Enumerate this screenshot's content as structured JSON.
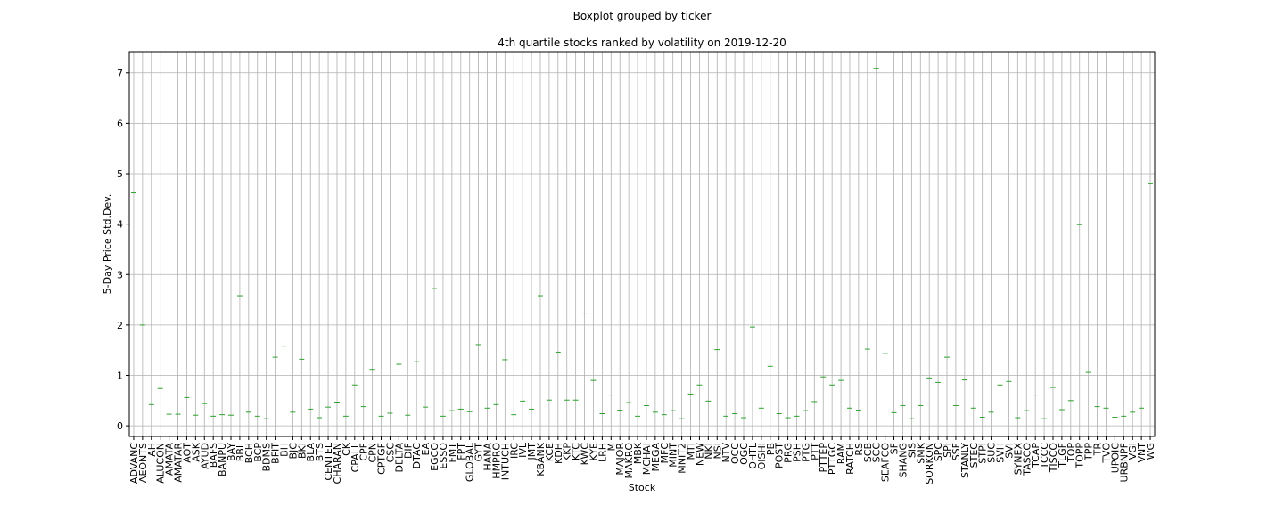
{
  "chart_data": {
    "type": "box",
    "title": "Boxplot grouped by ticker",
    "subtitle": "4th quartile stocks ranked by volatility on 2019-12-20",
    "x_label": "Stock",
    "y_label": "5-Day Price Std.Dev.",
    "color": "#2ca02c",
    "grid": true,
    "ylim": [
      -0.21,
      7.42
    ],
    "yticks": [
      0,
      1,
      2,
      3,
      4,
      5,
      6,
      7
    ],
    "categories": [
      "ADVANC",
      "AEONTS",
      "AH",
      "ALUCON",
      "AMATA",
      "AMATAR",
      "AOT",
      "ASK",
      "AYUD",
      "BAFS",
      "BANPU",
      "BAY",
      "BBL",
      "BCH",
      "BCP",
      "BDMS",
      "BFIT",
      "BH",
      "BJC",
      "BKI",
      "BLA",
      "BTS",
      "CENTEL",
      "CHARAN",
      "CK",
      "CPALL",
      "CPF",
      "CPN",
      "CPTGF",
      "CSC",
      "DELTA",
      "DIF",
      "DTAC",
      "EA",
      "EGCO",
      "ESSO",
      "FMT",
      "FPT",
      "GLOBAL",
      "GYT",
      "HANA",
      "HMPRO",
      "INTUCH",
      "IRC",
      "IVL",
      "JMT",
      "KBANK",
      "KCE",
      "KDH",
      "KKP",
      "KTC",
      "KWC",
      "KYE",
      "LRH",
      "M",
      "MAJOR",
      "MAKRO",
      "MBK",
      "MCHAI",
      "MEGA",
      "MFC",
      "MINT",
      "MNIT2",
      "MTI",
      "NEW",
      "NKI",
      "NSI",
      "NTV",
      "OCC",
      "OGC",
      "OHTL",
      "OISHI",
      "PB",
      "POST",
      "PRG",
      "PSH",
      "PTG",
      "PTT",
      "PTTEP",
      "PTTGC",
      "RAM",
      "RATCH",
      "RS",
      "SCB",
      "SCC",
      "SEAFCO",
      "SF",
      "SHANG",
      "SIS",
      "SMK",
      "SORKON",
      "SPC",
      "SPI",
      "SSF",
      "STANLY",
      "STEC",
      "STPI",
      "SUC",
      "SVH",
      "SVI",
      "SYNEX",
      "TASCO",
      "TCAP",
      "TCCC",
      "TISCO",
      "TLGF",
      "TOP",
      "TOPP",
      "TPP",
      "TR",
      "TVO",
      "UPOIC",
      "URBNPF",
      "VGI",
      "VNT",
      "WG"
    ],
    "values": [
      4.62,
      2.0,
      0.42,
      0.74,
      0.23,
      0.23,
      0.56,
      0.21,
      0.44,
      0.19,
      0.22,
      0.21,
      2.58,
      0.27,
      0.19,
      0.14,
      1.36,
      1.58,
      0.27,
      1.32,
      0.33,
      0.16,
      0.37,
      0.47,
      0.19,
      0.81,
      0.38,
      1.12,
      0.19,
      0.25,
      1.22,
      0.21,
      1.27,
      0.37,
      2.72,
      0.19,
      0.3,
      0.33,
      0.28,
      1.61,
      0.35,
      0.42,
      1.31,
      0.22,
      0.49,
      0.33,
      2.58,
      0.51,
      1.46,
      0.51,
      0.51,
      2.22,
      0.9,
      0.24,
      0.61,
      0.31,
      0.46,
      0.19,
      0.4,
      0.27,
      0.22,
      0.3,
      0.14,
      0.63,
      0.81,
      0.49,
      1.51,
      0.19,
      0.24,
      0.16,
      1.96,
      0.35,
      1.18,
      0.24,
      0.16,
      0.19,
      0.3,
      0.48,
      0.97,
      0.81,
      0.9,
      0.35,
      0.31,
      1.52,
      7.09,
      1.43,
      0.26,
      0.4,
      0.14,
      0.4,
      0.95,
      0.86,
      1.36,
      0.4,
      0.91,
      0.35,
      0.17,
      0.27,
      0.81,
      0.88,
      0.16,
      0.3,
      0.61,
      0.14,
      0.76,
      0.32,
      0.5,
      3.99,
      1.06,
      0.38,
      0.35,
      0.17,
      0.19,
      0.27,
      0.35,
      4.8
    ]
  }
}
